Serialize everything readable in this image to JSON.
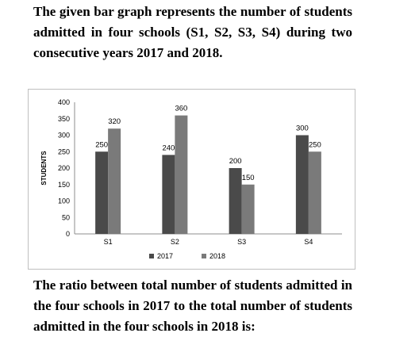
{
  "intro_text": "The given bar graph represents the number of students admitted in four schools (S1, S2, S3, S4) during two consecutive years 2017 and 2018.",
  "question_text": "The ratio between total number of students admitted in the four schools in 2017 to the total number of students admitted in the four schools in 2018 is:",
  "chart_data": {
    "type": "bar",
    "categories": [
      "S1",
      "S2",
      "S3",
      "S4"
    ],
    "series": [
      {
        "name": "2017",
        "values": [
          250,
          240,
          200,
          300
        ],
        "color": "#4a4a4a"
      },
      {
        "name": "2018",
        "values": [
          320,
          360,
          150,
          250
        ],
        "color": "#7a7a7a"
      }
    ],
    "title": "",
    "xlabel": "",
    "ylabel": "STUDENTS",
    "ylim": [
      0,
      400
    ],
    "yticks": [
      0,
      50,
      100,
      150,
      200,
      250,
      300,
      350,
      400
    ],
    "grid": false,
    "legend_position": "bottom"
  }
}
